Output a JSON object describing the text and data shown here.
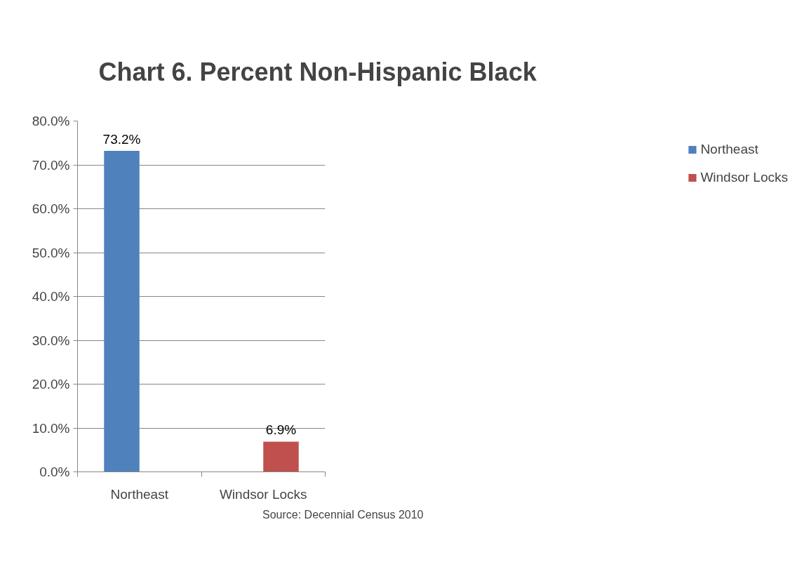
{
  "chart_data": {
    "type": "bar",
    "title": "Chart 6. Percent Non-Hispanic Black",
    "categories": [
      "Northeast",
      "Windsor Locks"
    ],
    "series": [
      {
        "name": "Northeast",
        "color": "#4f81bd",
        "values": [
          73.2,
          null
        ]
      },
      {
        "name": "Windsor Locks",
        "color": "#c0504d",
        "values": [
          null,
          6.9
        ]
      }
    ],
    "ylim": [
      0,
      80
    ],
    "yticks": [
      {
        "value": 0,
        "label": "0.0%"
      },
      {
        "value": 10,
        "label": "10.0%"
      },
      {
        "value": 20,
        "label": "20.0%"
      },
      {
        "value": 30,
        "label": "30.0%"
      },
      {
        "value": 40,
        "label": "40.0%"
      },
      {
        "value": 50,
        "label": "50.0%"
      },
      {
        "value": 60,
        "label": "60.0%"
      },
      {
        "value": 70,
        "label": "70.0%"
      },
      {
        "value": 80,
        "label": "80.0%"
      }
    ],
    "value_labels": [
      "73.2%",
      "6.9%"
    ],
    "grid": "y",
    "legend": "right",
    "annotations": [
      "Source: Decennial Census 2010"
    ]
  }
}
